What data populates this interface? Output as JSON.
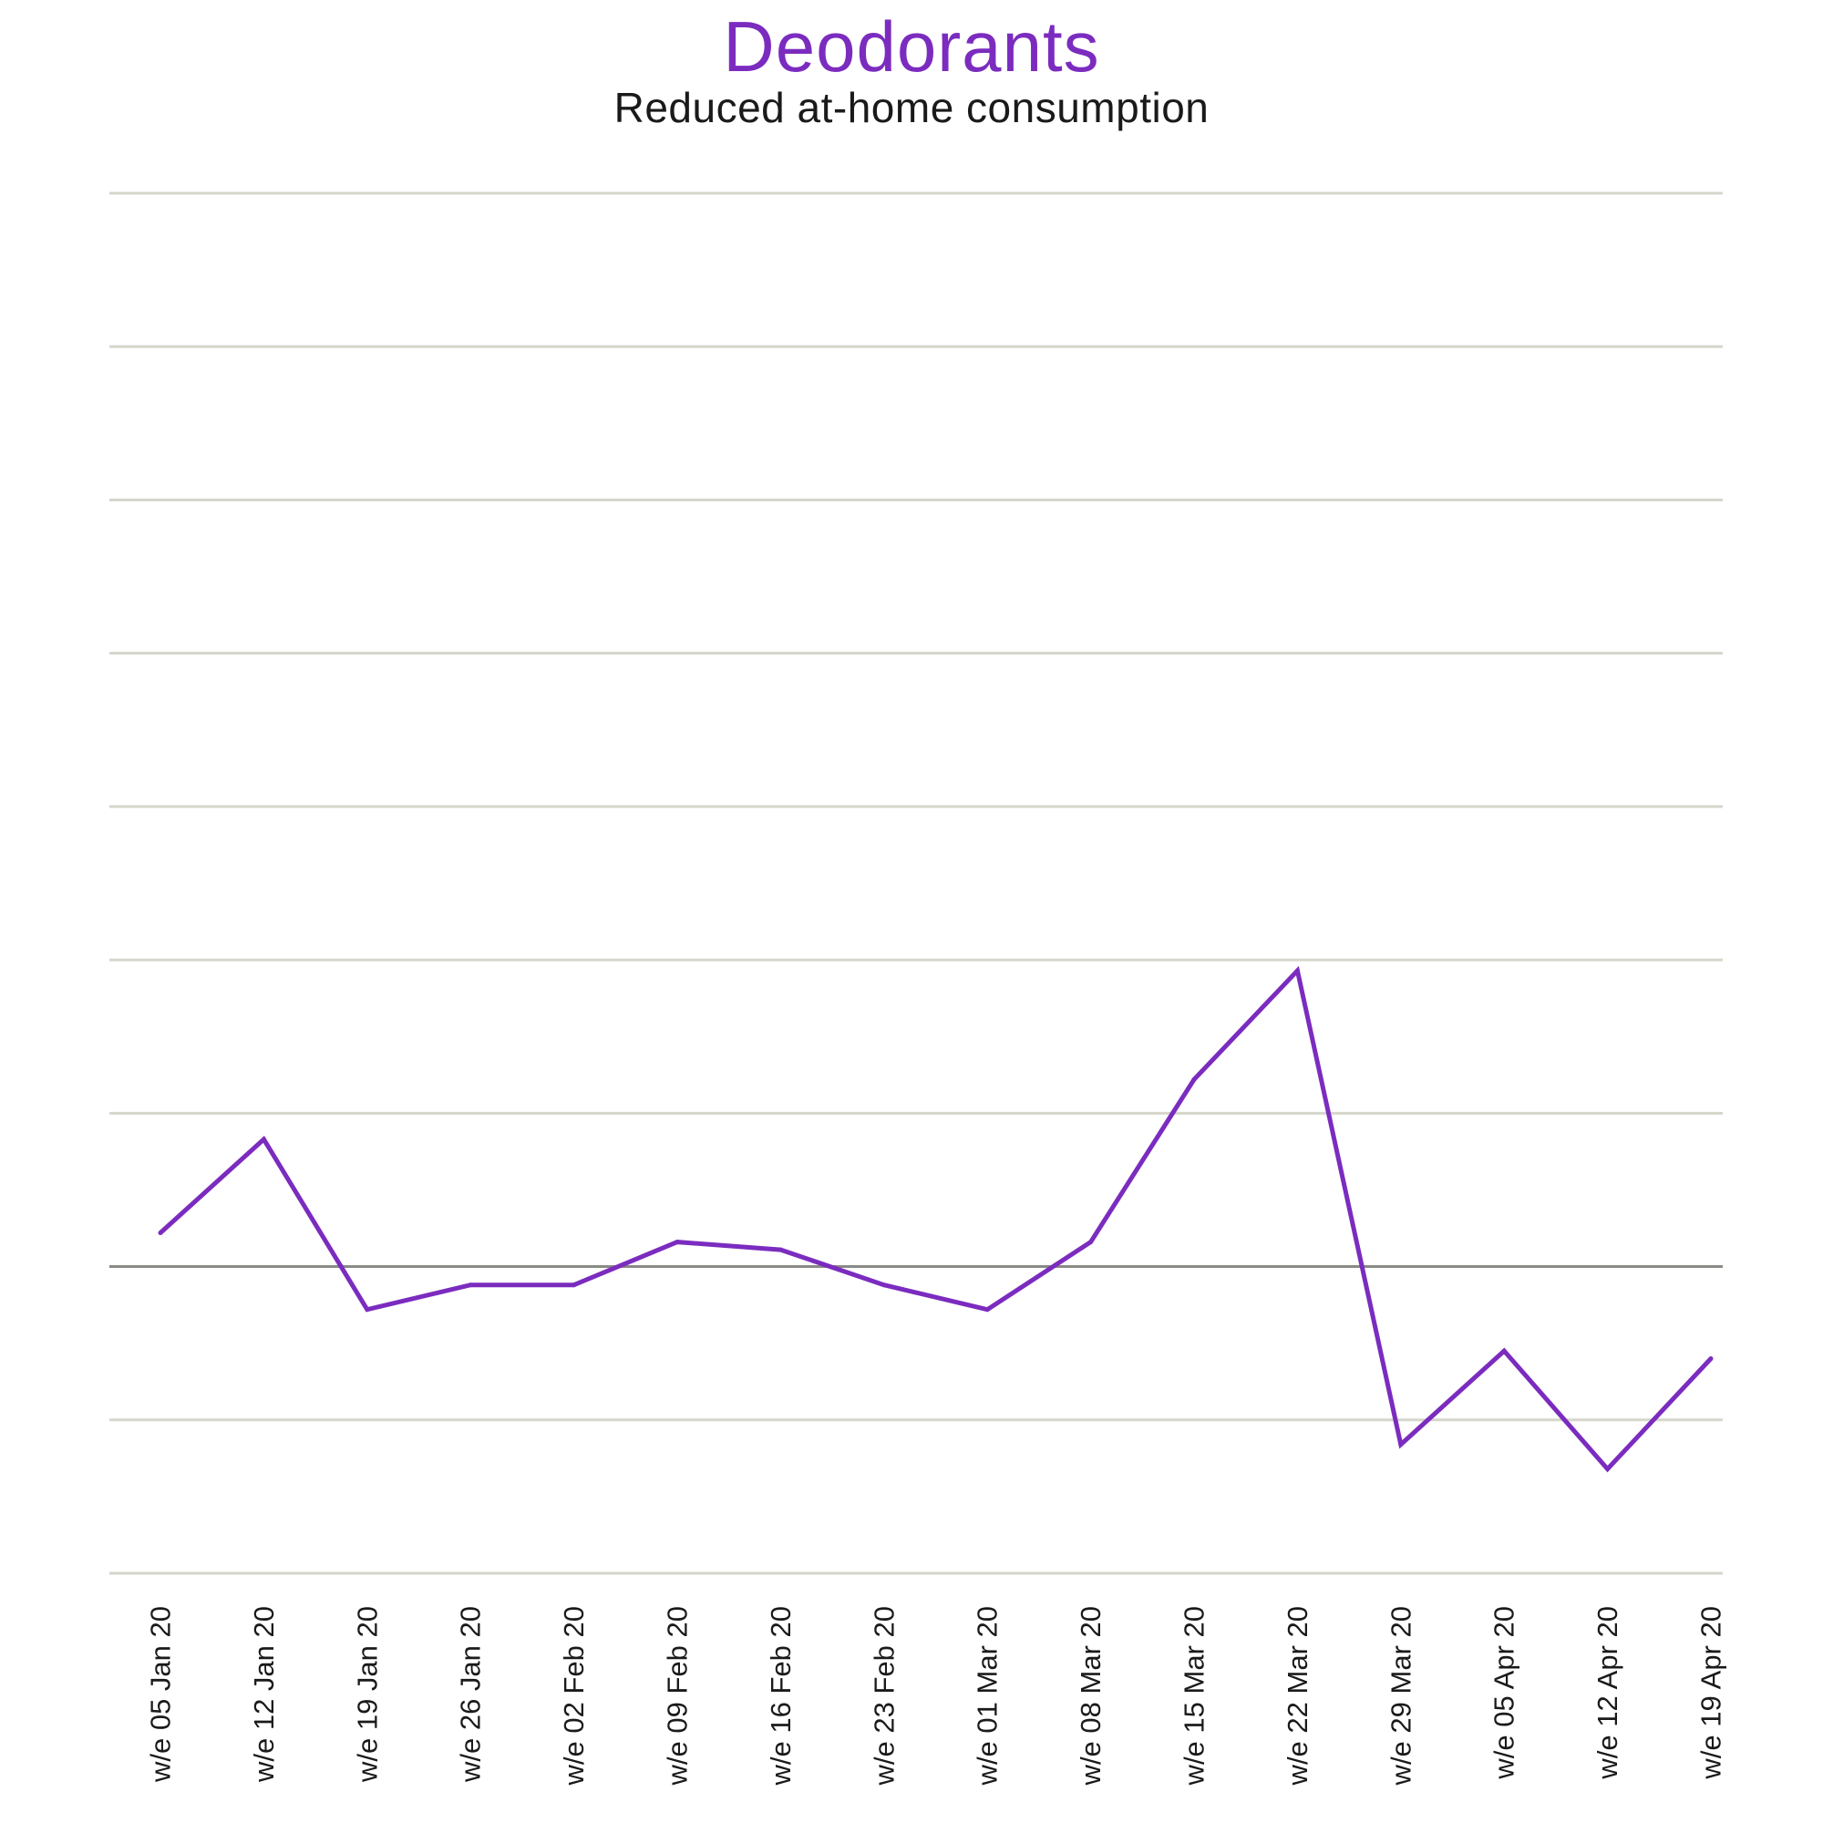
{
  "chart_data": {
    "type": "line",
    "title": "Deodorants",
    "subtitle": "Reduced at-home consumption",
    "xlabel": "",
    "ylabel": "",
    "categories": [
      "w/e 05 Jan 20",
      "w/e 12 Jan 20",
      "w/e 19 Jan 20",
      "w/e 26 Jan 20",
      "w/e 02 Feb 20",
      "w/e 09 Feb 20",
      "w/e 16 Feb 20",
      "w/e 23 Feb 20",
      "w/e 01 Mar 20",
      "w/e 08 Mar 20",
      "w/e 15 Mar 20",
      "w/e 22 Mar 20",
      "w/e 29 Mar 20",
      "w/e 05 Apr 20",
      "w/e 12 Apr 20",
      "w/e 19 Apr 20"
    ],
    "series": [
      {
        "values": [
          0.22,
          0.83,
          -0.28,
          -0.12,
          -0.12,
          0.16,
          0.11,
          -0.12,
          -0.28,
          0.16,
          1.22,
          1.93,
          -1.16,
          -0.55,
          -1.32,
          -0.6
        ]
      }
    ],
    "ylim": [
      -2,
      7
    ],
    "baseline": 0,
    "grid": true,
    "legend": "none",
    "colors": {
      "series": "#7b2cbf",
      "title": "#7b2cbf",
      "grid": "#d6d6cc",
      "baseline": "#8a8a86"
    }
  }
}
